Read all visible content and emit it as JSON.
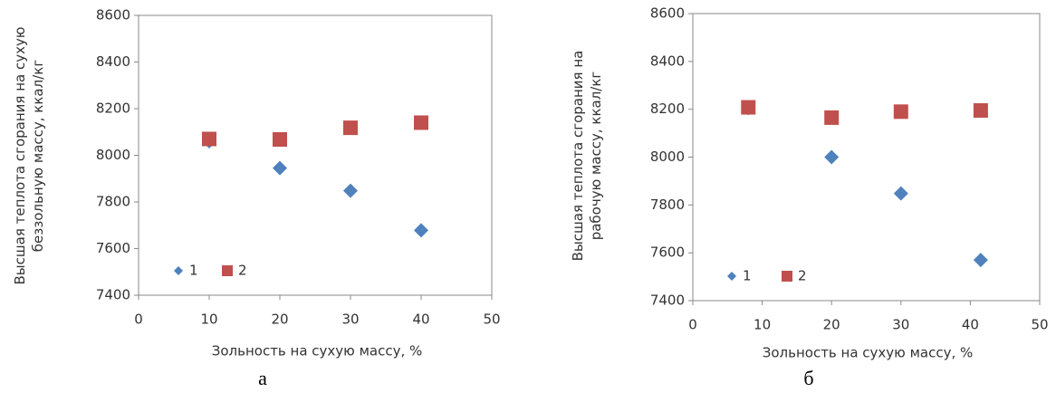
{
  "chart_data": [
    {
      "type": "scatter",
      "caption": "а",
      "x_label": "Зольность на сухую массу, %",
      "y_label": "Высшая теплота сгорания на сухую беззольную массу, ккал/кг",
      "xlim": [
        0,
        50
      ],
      "xticks": [
        0,
        10,
        20,
        30,
        40,
        50
      ],
      "ylim": [
        7400,
        8600
      ],
      "yticks": [
        7400,
        7600,
        7800,
        8000,
        8200,
        8400,
        8600
      ],
      "grid": false,
      "legend": "lower left",
      "series": [
        {
          "name": "1",
          "color": "#4f81bd",
          "marker": "diamond",
          "x": [
            10,
            20,
            30,
            40
          ],
          "values": [
            8060,
            7945,
            7848,
            7678
          ]
        },
        {
          "name": "2",
          "color": "#c0504d",
          "marker": "square",
          "x": [
            10,
            20,
            30,
            40
          ],
          "values": [
            8070,
            8068,
            8118,
            8140
          ]
        }
      ]
    },
    {
      "type": "scatter",
      "caption": "б",
      "x_label": "Зольность на сухую массу, %",
      "y_label": "Высшая теплота сгорания на рабочую массу, ккал/кг",
      "xlim": [
        0,
        50
      ],
      "xticks": [
        0,
        10,
        20,
        30,
        40,
        50
      ],
      "ylim": [
        7400,
        8600
      ],
      "yticks": [
        7400,
        7600,
        7800,
        8000,
        8200,
        8400,
        8600
      ],
      "grid": false,
      "legend": "lower left",
      "series": [
        {
          "name": "1",
          "color": "#4f81bd",
          "marker": "diamond",
          "x": [
            8,
            20,
            30,
            41.5
          ],
          "values": [
            8205,
            8000,
            7848,
            7570
          ]
        },
        {
          "name": "2",
          "color": "#c0504d",
          "marker": "square",
          "x": [
            8,
            20,
            30,
            41.5
          ],
          "values": [
            8208,
            8165,
            8190,
            8195
          ]
        }
      ]
    }
  ]
}
